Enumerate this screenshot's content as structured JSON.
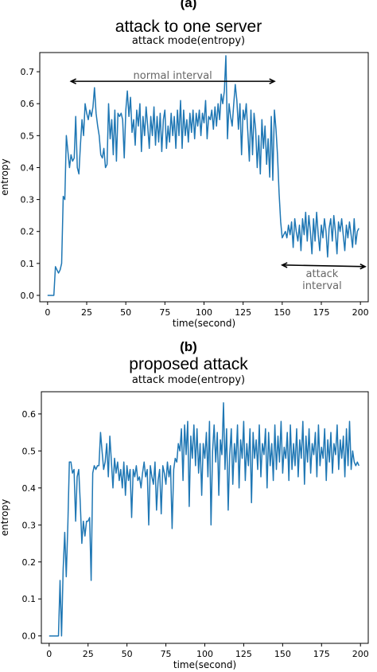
{
  "chart_data": [
    {
      "type": "line",
      "panel_label": "(a)",
      "title": "attack to one server",
      "subtitle": "attack mode(entropy)",
      "xlabel": "time(second)",
      "ylabel": "entropy",
      "xlim": [
        -5,
        205
      ],
      "ylim": [
        -0.02,
        0.76
      ],
      "xticks": [
        0,
        25,
        50,
        75,
        100,
        125,
        150,
        175,
        200
      ],
      "yticks": [
        0.0,
        0.1,
        0.2,
        0.3,
        0.4,
        0.5,
        0.6,
        0.7
      ],
      "color": "#1f77b4",
      "annotations": [
        {
          "text": "normal interval",
          "from": [
            15,
            0.67
          ],
          "to": [
            145,
            0.67
          ]
        },
        {
          "text": "attack interval",
          "from": [
            150,
            0.095
          ],
          "to": [
            203,
            0.09
          ]
        }
      ],
      "series": [
        {
          "x": [
            0,
            1,
            2,
            3,
            4,
            5,
            6,
            7,
            8,
            9,
            10,
            11,
            12,
            13,
            14,
            15,
            16,
            17,
            18,
            19,
            20,
            21,
            22,
            23,
            24,
            25,
            26,
            27,
            28,
            29,
            30,
            31,
            32,
            33,
            34,
            35,
            36,
            37,
            38,
            39,
            40,
            41,
            42,
            43,
            44,
            45,
            46,
            47,
            48,
            49,
            50,
            51,
            52,
            53,
            54,
            55,
            56,
            57,
            58,
            59,
            60,
            61,
            62,
            63,
            64,
            65,
            66,
            67,
            68,
            69,
            70,
            71,
            72,
            73,
            74,
            75,
            76,
            77,
            78,
            79,
            80,
            81,
            82,
            83,
            84,
            85,
            86,
            87,
            88,
            89,
            90,
            91,
            92,
            93,
            94,
            95,
            96,
            97,
            98,
            99,
            100,
            101,
            102,
            103,
            104,
            105,
            106,
            107,
            108,
            109,
            110,
            111,
            112,
            113,
            114,
            115,
            116,
            117,
            118,
            119,
            120,
            121,
            122,
            123,
            124,
            125,
            126,
            127,
            128,
            129,
            130,
            131,
            132,
            133,
            134,
            135,
            136,
            137,
            138,
            139,
            140,
            141,
            142,
            143,
            144,
            145,
            146,
            147,
            148,
            149,
            150,
            151,
            152,
            153,
            154,
            155,
            156,
            157,
            158,
            159,
            160,
            161,
            162,
            163,
            164,
            165,
            166,
            167,
            168,
            169,
            170,
            171,
            172,
            173,
            174,
            175,
            176,
            177,
            178,
            179,
            180,
            181,
            182,
            183,
            184,
            185,
            186,
            187,
            188,
            189,
            190,
            191,
            192,
            193,
            194,
            195,
            196,
            197,
            198,
            199
          ],
          "y": [
            0.0,
            0.0,
            0.0,
            0.0,
            0.0,
            0.09,
            0.08,
            0.07,
            0.08,
            0.1,
            0.31,
            0.3,
            0.5,
            0.45,
            0.4,
            0.44,
            0.42,
            0.43,
            0.56,
            0.4,
            0.38,
            0.47,
            0.55,
            0.5,
            0.6,
            0.57,
            0.55,
            0.58,
            0.56,
            0.59,
            0.65,
            0.57,
            0.53,
            0.5,
            0.44,
            0.43,
            0.46,
            0.4,
            0.41,
            0.6,
            0.49,
            0.55,
            0.44,
            0.58,
            0.42,
            0.57,
            0.56,
            0.57,
            0.55,
            0.43,
            0.58,
            0.64,
            0.56,
            0.62,
            0.51,
            0.55,
            0.47,
            0.58,
            0.53,
            0.6,
            0.45,
            0.56,
            0.5,
            0.59,
            0.53,
            0.46,
            0.56,
            0.5,
            0.59,
            0.47,
            0.56,
            0.48,
            0.57,
            0.45,
            0.55,
            0.58,
            0.46,
            0.53,
            0.48,
            0.57,
            0.5,
            0.56,
            0.46,
            0.58,
            0.5,
            0.61,
            0.46,
            0.58,
            0.5,
            0.55,
            0.48,
            0.57,
            0.51,
            0.58,
            0.49,
            0.57,
            0.53,
            0.58,
            0.5,
            0.57,
            0.54,
            0.61,
            0.49,
            0.56,
            0.55,
            0.58,
            0.52,
            0.59,
            0.53,
            0.6,
            0.55,
            0.63,
            0.6,
            0.64,
            0.75,
            0.49,
            0.6,
            0.56,
            0.53,
            0.6,
            0.66,
            0.61,
            0.52,
            0.6,
            0.44,
            0.58,
            0.55,
            0.6,
            0.51,
            0.42,
            0.58,
            0.44,
            0.57,
            0.52,
            0.4,
            0.5,
            0.38,
            0.55,
            0.46,
            0.53,
            0.41,
            0.49,
            0.37,
            0.56,
            0.36,
            0.58,
            0.52,
            0.44,
            0.32,
            0.23,
            0.18,
            0.19,
            0.2,
            0.18,
            0.22,
            0.19,
            0.23,
            0.15,
            0.24,
            0.2,
            0.17,
            0.22,
            0.14,
            0.24,
            0.19,
            0.26,
            0.17,
            0.25,
            0.2,
            0.13,
            0.24,
            0.17,
            0.26,
            0.19,
            0.14,
            0.22,
            0.18,
            0.24,
            0.2,
            0.12,
            0.21,
            0.24,
            0.17,
            0.25,
            0.2,
            0.13,
            0.23,
            0.2,
            0.24,
            0.19,
            0.14,
            0.22,
            0.18,
            0.23,
            0.19,
            0.15,
            0.24,
            0.16,
            0.2,
            0.21
          ]
        }
      ]
    },
    {
      "type": "line",
      "panel_label": "(b)",
      "title": "proposed attack",
      "subtitle": "attack mode(entropy)",
      "xlabel": "time(second)",
      "ylabel": "entropy",
      "xlim": [
        -5,
        205
      ],
      "ylim": [
        -0.02,
        0.66
      ],
      "xticks": [
        0,
        25,
        50,
        75,
        100,
        125,
        150,
        175,
        200
      ],
      "yticks": [
        0.0,
        0.1,
        0.2,
        0.3,
        0.4,
        0.5,
        0.6
      ],
      "color": "#1f77b4",
      "annotations": [],
      "series": [
        {
          "x": [
            0,
            1,
            2,
            3,
            4,
            5,
            6,
            7,
            8,
            9,
            10,
            11,
            12,
            13,
            14,
            15,
            16,
            17,
            18,
            19,
            20,
            21,
            22,
            23,
            24,
            25,
            26,
            27,
            28,
            29,
            30,
            31,
            32,
            33,
            34,
            35,
            36,
            37,
            38,
            39,
            40,
            41,
            42,
            43,
            44,
            45,
            46,
            47,
            48,
            49,
            50,
            51,
            52,
            53,
            54,
            55,
            56,
            57,
            58,
            59,
            60,
            61,
            62,
            63,
            64,
            65,
            66,
            67,
            68,
            69,
            70,
            71,
            72,
            73,
            74,
            75,
            76,
            77,
            78,
            79,
            80,
            81,
            82,
            83,
            84,
            85,
            86,
            87,
            88,
            89,
            90,
            91,
            92,
            93,
            94,
            95,
            96,
            97,
            98,
            99,
            100,
            101,
            102,
            103,
            104,
            105,
            106,
            107,
            108,
            109,
            110,
            111,
            112,
            113,
            114,
            115,
            116,
            117,
            118,
            119,
            120,
            121,
            122,
            123,
            124,
            125,
            126,
            127,
            128,
            129,
            130,
            131,
            132,
            133,
            134,
            135,
            136,
            137,
            138,
            139,
            140,
            141,
            142,
            143,
            144,
            145,
            146,
            147,
            148,
            149,
            150,
            151,
            152,
            153,
            154,
            155,
            156,
            157,
            158,
            159,
            160,
            161,
            162,
            163,
            164,
            165,
            166,
            167,
            168,
            169,
            170,
            171,
            172,
            173,
            174,
            175,
            176,
            177,
            178,
            179,
            180,
            181,
            182,
            183,
            184,
            185,
            186,
            187,
            188,
            189,
            190,
            191,
            192,
            193,
            194,
            195,
            196,
            197,
            198,
            199
          ],
          "y": [
            0.0,
            0.0,
            0.0,
            0.0,
            0.0,
            0.0,
            0.0,
            0.15,
            0.0,
            0.18,
            0.28,
            0.16,
            0.3,
            0.47,
            0.47,
            0.44,
            0.45,
            0.31,
            0.43,
            0.45,
            0.36,
            0.25,
            0.31,
            0.27,
            0.31,
            0.31,
            0.32,
            0.15,
            0.44,
            0.46,
            0.45,
            0.46,
            0.46,
            0.55,
            0.5,
            0.45,
            0.47,
            0.52,
            0.43,
            0.54,
            0.47,
            0.4,
            0.48,
            0.44,
            0.47,
            0.42,
            0.45,
            0.4,
            0.47,
            0.38,
            0.46,
            0.42,
            0.45,
            0.32,
            0.45,
            0.43,
            0.46,
            0.42,
            0.43,
            0.4,
            0.44,
            0.47,
            0.43,
            0.45,
            0.3,
            0.46,
            0.43,
            0.41,
            0.47,
            0.34,
            0.42,
            0.45,
            0.33,
            0.46,
            0.44,
            0.41,
            0.47,
            0.43,
            0.46,
            0.29,
            0.45,
            0.48,
            0.47,
            0.52,
            0.5,
            0.56,
            0.42,
            0.57,
            0.49,
            0.58,
            0.35,
            0.54,
            0.48,
            0.57,
            0.46,
            0.56,
            0.44,
            0.52,
            0.38,
            0.52,
            0.48,
            0.55,
            0.43,
            0.58,
            0.3,
            0.5,
            0.57,
            0.47,
            0.55,
            0.38,
            0.53,
            0.49,
            0.63,
            0.45,
            0.56,
            0.34,
            0.49,
            0.56,
            0.41,
            0.52,
            0.47,
            0.57,
            0.4,
            0.53,
            0.48,
            0.58,
            0.42,
            0.52,
            0.46,
            0.56,
            0.36,
            0.55,
            0.48,
            0.53,
            0.45,
            0.57,
            0.43,
            0.52,
            0.49,
            0.56,
            0.4,
            0.55,
            0.46,
            0.52,
            0.42,
            0.57,
            0.45,
            0.54,
            0.47,
            0.58,
            0.44,
            0.51,
            0.48,
            0.55,
            0.42,
            0.57,
            0.45,
            0.52,
            0.46,
            0.56,
            0.43,
            0.53,
            0.48,
            0.58,
            0.41,
            0.54,
            0.47,
            0.56,
            0.44,
            0.52,
            0.49,
            0.55,
            0.43,
            0.57,
            0.46,
            0.51,
            0.48,
            0.56,
            0.42,
            0.53,
            0.47,
            0.55,
            0.44,
            0.52,
            0.49,
            0.57,
            0.45,
            0.53,
            0.48,
            0.54,
            0.43,
            0.56,
            0.46,
            0.58,
            0.45,
            0.5,
            0.47,
            0.46,
            0.47,
            0.46
          ]
        }
      ]
    }
  ]
}
